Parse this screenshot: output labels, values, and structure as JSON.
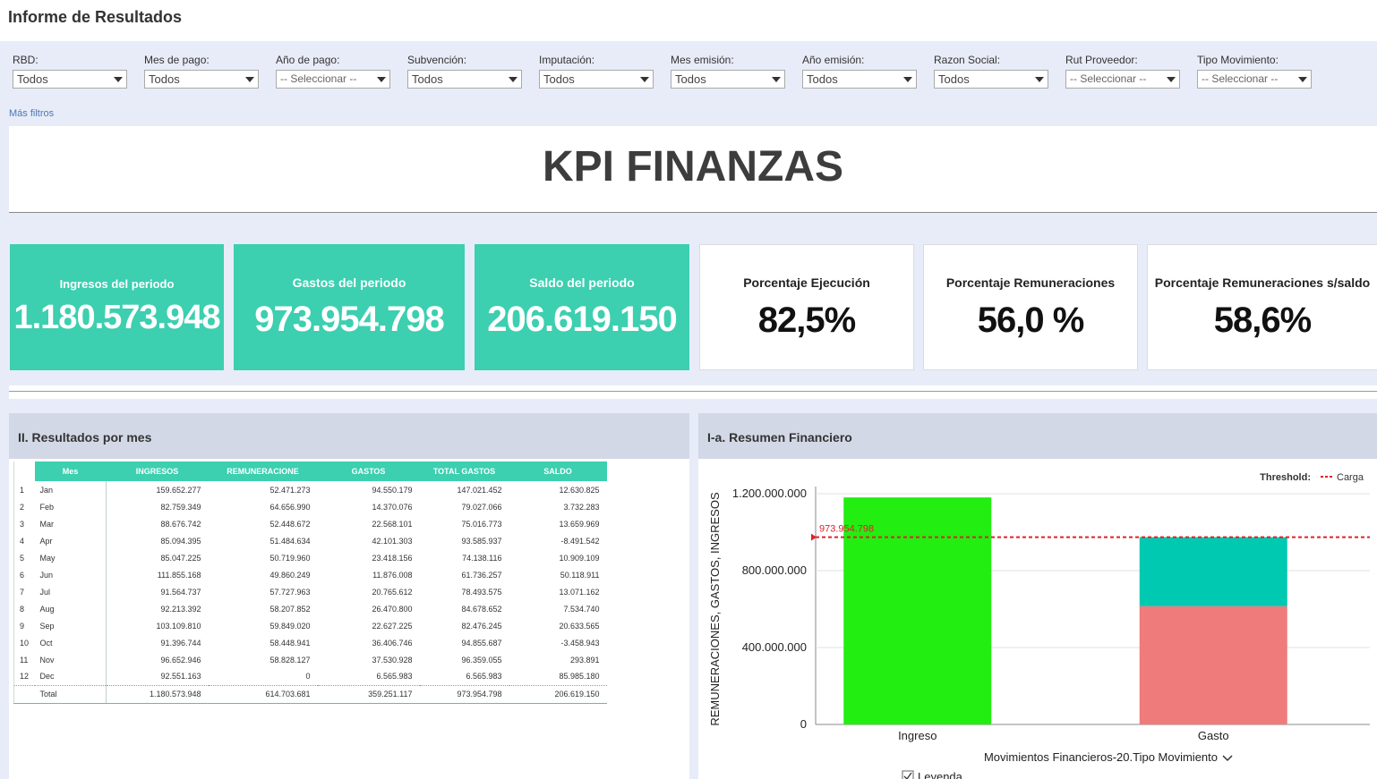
{
  "header": {
    "title": "Informe de Resultados"
  },
  "filters": [
    {
      "label": "RBD:",
      "value": "Todos"
    },
    {
      "label": "Mes de pago:",
      "value": "Todos"
    },
    {
      "label": "Año de pago:",
      "value": "-- Seleccionar --"
    },
    {
      "label": "Subvención:",
      "value": "Todos"
    },
    {
      "label": "Imputación:",
      "value": "Todos"
    },
    {
      "label": "Mes emisión:",
      "value": "Todos"
    },
    {
      "label": "Año emisión:",
      "value": "Todos"
    },
    {
      "label": "Razon Social:",
      "value": "Todos"
    },
    {
      "label": "Rut Proveedor:",
      "value": "-- Seleccionar --"
    },
    {
      "label": "Tipo Movimiento:",
      "value": "-- Seleccionar --"
    }
  ],
  "more_filters": "Más filtros",
  "banner": {
    "title": "KPI FINANZAS"
  },
  "kpis": [
    {
      "label": "Ingresos del periodo",
      "value": "1.180.573.948"
    },
    {
      "label": "Gastos del periodo",
      "value": "973.954.798"
    },
    {
      "label": "Saldo del periodo",
      "value": "206.619.150"
    },
    {
      "label": "Porcentaje Ejecución",
      "value": "82,5%"
    },
    {
      "label": "Porcentaje Remuneraciones",
      "value": "56,0 %"
    },
    {
      "label": "Porcentaje Remuneraciones s/saldo",
      "value": "58,6%"
    }
  ],
  "results_panel": {
    "title": "II. Resultados por mes",
    "columns": [
      "Mes",
      "INGRESOS",
      "REMUNERACIONE",
      "GASTOS",
      "TOTAL GASTOS",
      "SALDO"
    ],
    "rows": [
      [
        "1",
        "Jan",
        "159.652.277",
        "52.471.273",
        "94.550.179",
        "147.021.452",
        "12.630.825"
      ],
      [
        "2",
        "Feb",
        "82.759.349",
        "64.656.990",
        "14.370.076",
        "79.027.066",
        "3.732.283"
      ],
      [
        "3",
        "Mar",
        "88.676.742",
        "52.448.672",
        "22.568.101",
        "75.016.773",
        "13.659.969"
      ],
      [
        "4",
        "Apr",
        "85.094.395",
        "51.484.634",
        "42.101.303",
        "93.585.937",
        "-8.491.542"
      ],
      [
        "5",
        "May",
        "85.047.225",
        "50.719.960",
        "23.418.156",
        "74.138.116",
        "10.909.109"
      ],
      [
        "6",
        "Jun",
        "111.855.168",
        "49.860.249",
        "11.876.008",
        "61.736.257",
        "50.118.911"
      ],
      [
        "7",
        "Jul",
        "91.564.737",
        "57.727.963",
        "20.765.612",
        "78.493.575",
        "13.071.162"
      ],
      [
        "8",
        "Aug",
        "92.213.392",
        "58.207.852",
        "26.470.800",
        "84.678.652",
        "7.534.740"
      ],
      [
        "9",
        "Sep",
        "103.109.810",
        "59.849.020",
        "22.627.225",
        "82.476.245",
        "20.633.565"
      ],
      [
        "10",
        "Oct",
        "91.396.744",
        "58.448.941",
        "36.406.746",
        "94.855.687",
        "-3.458.943"
      ],
      [
        "11",
        "Nov",
        "96.652.946",
        "58.828.127",
        "37.530.928",
        "96.359.055",
        "293.891"
      ],
      [
        "12",
        "Dec",
        "92.551.163",
        "0",
        "6.565.983",
        "6.565.983",
        "85.985.180"
      ]
    ],
    "total": [
      "",
      "Total",
      "1.180.573.948",
      "614.703.681",
      "359.251.117",
      "973.954.798",
      "206.619.150"
    ]
  },
  "chart_panel": {
    "title": "I-a. Resumen Financiero"
  },
  "chart_data": {
    "type": "bar",
    "stacked": true,
    "categories": [
      "Ingreso",
      "Gasto"
    ],
    "series": [
      {
        "values": [
          1180573948,
          0
        ],
        "color": "#22ee11"
      },
      {
        "values": [
          0,
          614703681
        ],
        "color": "#f07b7b"
      },
      {
        "values": [
          0,
          359251117
        ],
        "color": "#00c9b1"
      }
    ],
    "threshold": {
      "label_title": "Threshold:",
      "legend_name": "Carga",
      "value": 973954798,
      "value_label": "973.954.798",
      "color": "#e0202a"
    },
    "ylabel": "REMUNERACIONES, GASTOS, INGRESOS",
    "xlabel": "Movimientos Financieros-20.Tipo Movimiento",
    "ylim": [
      0,
      1200000000
    ],
    "yticks": [
      "0",
      "400.000.000",
      "800.000.000",
      "1.200.000.000"
    ],
    "ytick_values": [
      0,
      400000000,
      800000000,
      1200000000
    ],
    "legend_toggle": "Leyenda",
    "grid": true
  }
}
